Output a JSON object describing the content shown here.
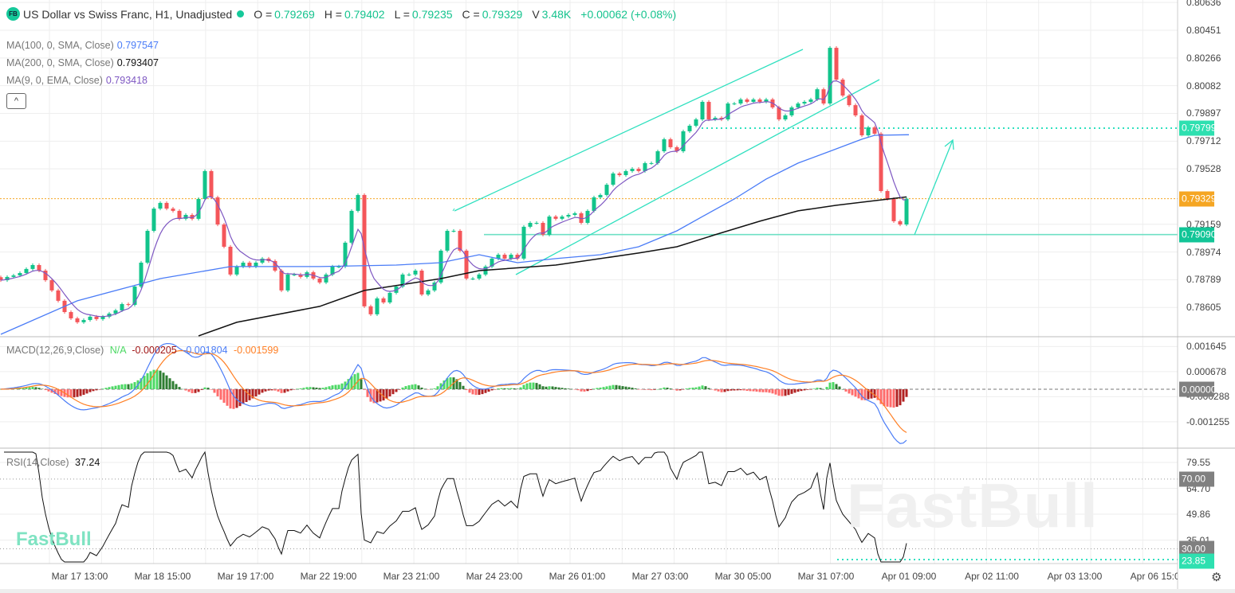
{
  "header": {
    "logo": "FB",
    "title": "US Dollar vs Swiss Franc, H1, Unadjusted",
    "ohlc": [
      {
        "k": "O =",
        "v": "0.79269"
      },
      {
        "k": "H =",
        "v": "0.79402"
      },
      {
        "k": "L =",
        "v": "0.79235"
      },
      {
        "k": "C =",
        "v": "0.79329"
      },
      {
        "k": "V",
        "v": "3.48K"
      }
    ],
    "change": "+0.00062 (+0.08%)"
  },
  "ma_legend": [
    {
      "label": "MA(100, 0, SMA, Close)",
      "value": "0.797547",
      "color": "#4a7cf7"
    },
    {
      "label": "MA(200, 0, SMA, Close)",
      "value": "0.793407",
      "color": "#111111"
    },
    {
      "label": "MA(9, 0, EMA, Close)",
      "value": "0.793418",
      "color": "#7e57c2"
    }
  ],
  "collapse_icon": "chevron-up",
  "macd": {
    "label": "MACD(12,26,9,Close)",
    "na": "N/A",
    "hist": "-0.000205",
    "macd": "-0.001804",
    "signal": "-0.001599"
  },
  "rsi": {
    "label": "RSI(14,Close)",
    "value": "37.24"
  },
  "price_axis": [
    "0.80636",
    "0.80451",
    "0.80266",
    "0.80082",
    "0.79897",
    "0.79712",
    "0.79528",
    "0.79159",
    "0.78974",
    "0.78789",
    "0.78605"
  ],
  "macd_axis": [
    "0.001645",
    "0.000678",
    "-0.000288",
    "-0.001255"
  ],
  "rsi_axis": [
    "79.55",
    "64.70",
    "49.86",
    "35.01"
  ],
  "price_boxes": [
    {
      "value": "0.79799",
      "color": "#2ee0b0"
    },
    {
      "value": "0.79329",
      "color": "#f5a623"
    },
    {
      "value": "0.79090",
      "color": "#12c597"
    }
  ],
  "macd_box": {
    "value": "0.000000",
    "color": "#808080"
  },
  "rsi_boxes": [
    {
      "value": "70.00",
      "color": "#808080"
    },
    {
      "value": "30.00",
      "color": "#808080"
    },
    {
      "value": "23.85",
      "color": "#2ee0b0"
    }
  ],
  "time_axis": [
    "Mar 17 13:00",
    "Mar 18 15:00",
    "Mar 19 17:00",
    "Mar 22 19:00",
    "Mar 23 21:00",
    "Mar 24 23:00",
    "Mar 26 01:00",
    "Mar 27 03:00",
    "Mar 30 05:00",
    "Mar 31 07:00",
    "Apr 01 09:00",
    "Apr 02 11:00",
    "Apr 03 13:00",
    "Apr 06 15:00"
  ],
  "watermark": "FastBull",
  "colors": {
    "up": "#12c48b",
    "down": "#f4565a",
    "ema9": "#7e57c2",
    "sma100": "#4a7cf7",
    "sma200": "#111111",
    "drawing": "#2fe0bf",
    "last": "#f5a623",
    "macd": "#4a7cf7",
    "signal": "#ff7f24",
    "rsi": "#111111"
  },
  "chart_data": {
    "type": "candlestick",
    "closes": [
      0.78786,
      0.78808,
      0.78818,
      0.78834,
      0.78861,
      0.78887,
      0.7885,
      0.78786,
      0.78718,
      0.78649,
      0.78574,
      0.78532,
      0.78506,
      0.78521,
      0.78543,
      0.78527,
      0.78543,
      0.78564,
      0.78585,
      0.78627,
      0.78622,
      0.78744,
      0.78903,
      0.79115,
      0.79263,
      0.79301,
      0.79263,
      0.79248,
      0.79195,
      0.79221,
      0.79195,
      0.79327,
      0.79513,
      0.79338,
      0.79157,
      0.79009,
      0.78824,
      0.78877,
      0.78903,
      0.78877,
      0.78903,
      0.7893,
      0.78914,
      0.7885,
      0.78718,
      0.78824,
      0.78824,
      0.78808,
      0.78839,
      0.78797,
      0.78771,
      0.78824,
      0.78877,
      0.78877,
      0.79036,
      0.79248,
      0.79354,
      0.78612,
      0.78559,
      0.78665,
      0.78638,
      0.78702,
      0.78744,
      0.78824,
      0.78824,
      0.7885,
      0.78691,
      0.78718,
      0.78771,
      0.78983,
      0.79115,
      0.79115,
      0.78983,
      0.78797,
      0.78797,
      0.78824,
      0.78877,
      0.7893,
      0.78956,
      0.7893,
      0.78956,
      0.7893,
      0.79142,
      0.79168,
      0.79168,
      0.79089,
      0.7921,
      0.79195,
      0.7921,
      0.79221,
      0.79232,
      0.79168,
      0.79248,
      0.79338,
      0.79354,
      0.79422,
      0.79497,
      0.79486,
      0.79513,
      0.79528,
      0.79513,
      0.79566,
      0.79566,
      0.79645,
      0.79725,
      0.79672,
      0.79645,
      0.79778,
      0.79815,
      0.79857,
      0.79974,
      0.79857,
      0.79868,
      0.79857,
      0.79963,
      0.79963,
      0.7999,
      0.79974,
      0.7999,
      0.79974,
      0.7999,
      0.79937,
      0.79857,
      0.79884,
      0.79937,
      0.79963,
      0.79974,
      0.7999,
      0.80058,
      0.79963,
      0.80334,
      0.80122,
      0.80016,
      0.79952,
      0.79884,
      0.79751,
      0.79804,
      0.79762,
      0.7938,
      0.79327,
      0.79179,
      0.79157,
      0.79329
    ],
    "sma100": [
      [
        0,
        0.78426
      ],
      [
        12,
        0.78649
      ],
      [
        25,
        0.78797
      ],
      [
        36,
        0.78877
      ],
      [
        50,
        0.78877
      ],
      [
        62,
        0.78887
      ],
      [
        69,
        0.78903
      ],
      [
        75,
        0.78956
      ],
      [
        81,
        0.78903
      ],
      [
        87,
        0.7893
      ],
      [
        94,
        0.78956
      ],
      [
        100,
        0.79009
      ],
      [
        106,
        0.79115
      ],
      [
        110,
        0.7921
      ],
      [
        115,
        0.79327
      ],
      [
        120,
        0.7946
      ],
      [
        125,
        0.79566
      ],
      [
        130,
        0.79645
      ],
      [
        135,
        0.79725
      ],
      [
        137,
        0.79751
      ],
      [
        142,
        0.79755
      ]
    ],
    "sma200": [
      [
        31,
        0.78415
      ],
      [
        37,
        0.78506
      ],
      [
        50,
        0.78612
      ],
      [
        57,
        0.78718
      ],
      [
        69,
        0.78797
      ],
      [
        75,
        0.7885
      ],
      [
        87,
        0.78887
      ],
      [
        100,
        0.78967
      ],
      [
        106,
        0.79009
      ],
      [
        112,
        0.79089
      ],
      [
        119,
        0.79179
      ],
      [
        125,
        0.79248
      ],
      [
        131,
        0.79285
      ],
      [
        137,
        0.79316
      ],
      [
        142,
        0.79341
      ]
    ],
    "levels": {
      "last": 0.79329,
      "resistance": 0.79799,
      "support": 0.7909,
      "rsi_upper": 70,
      "rsi_lower": 30,
      "rsi_low_mark": 23.85
    },
    "price_range": [
      0.7845,
      0.8066
    ],
    "macd_range": [
      -0.00205,
      0.00205
    ],
    "rsi_range": [
      16,
      88
    ]
  }
}
